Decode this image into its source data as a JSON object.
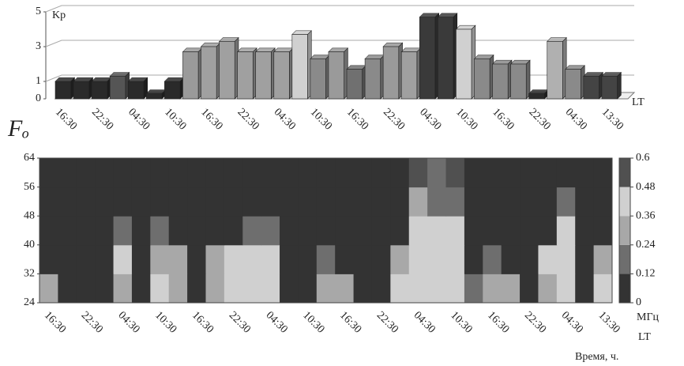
{
  "chart_data": [
    {
      "type": "bar3d",
      "ylabel": "Kp",
      "xlabel": "LT",
      "ylim": [
        0,
        5
      ],
      "yticks": [
        0,
        1,
        3,
        5
      ],
      "grid": true,
      "xtick_labels": [
        "16:30",
        "22:30",
        "04:30",
        "10:30",
        "16:30",
        "22:30",
        "04:30",
        "10:30",
        "16:30",
        "22:30",
        "04:30",
        "10:30",
        "16:30",
        "22:30",
        "04:30",
        "13:30"
      ],
      "values": [
        1,
        1,
        1,
        1.3,
        1,
        0.3,
        1,
        2.7,
        3,
        3.3,
        2.7,
        2.7,
        2.7,
        3.7,
        2.3,
        2.7,
        1.7,
        2.3,
        3,
        2.7,
        4.7,
        4.7,
        4,
        2.3,
        2,
        2,
        0.3,
        3.3,
        1.7,
        1.3,
        1.3
      ],
      "colors": [
        "#2a2a2a",
        "#2a2a2a",
        "#2a2a2a",
        "#555",
        "#2a2a2a",
        "#2a2a2a",
        "#2a2a2a",
        "#9a9a9a",
        "#a0a0a0",
        "#a0a0a0",
        "#a0a0a0",
        "#a0a0a0",
        "#a0a0a0",
        "#d0d0d0",
        "#8a8a8a",
        "#9a9a9a",
        "#707070",
        "#8a8a8a",
        "#9a9a9a",
        "#a0a0a0",
        "#3a3a3a",
        "#3a3a3a",
        "#d0d0d0",
        "#8a8a8a",
        "#8a8a8a",
        "#8a8a8a",
        "#2a2a2a",
        "#b0b0b0",
        "#8a8a8a",
        "#444",
        "#444"
      ]
    },
    {
      "type": "heatmap",
      "ylabel": "Fₒ",
      "xlabel": "LT",
      "caption": "Время, ч.",
      "colorbar_label": "МГц",
      "ylim": [
        24,
        64
      ],
      "yticks": [
        24,
        32,
        40,
        48,
        56,
        64
      ],
      "xtick_labels": [
        "16:30",
        "22:30",
        "04:30",
        "10:30",
        "16:30",
        "22:30",
        "04:30",
        "10:30",
        "16:30",
        "22:30",
        "04:30",
        "10:30",
        "16:30",
        "22:30",
        "04:30",
        "13:30"
      ],
      "clim": [
        0,
        0.6
      ],
      "cticks": [
        0,
        0.12,
        0.24,
        0.36,
        0.48,
        0.6
      ],
      "colorscale": [
        "#333333",
        "#6e6e6e",
        "#a8a8a8",
        "#d0d0d0",
        "#505050"
      ],
      "z": [
        [
          0.24,
          0.06,
          0.06,
          0.06,
          0.3,
          0.06,
          0.36,
          0.24,
          0.06,
          0.3,
          0.42,
          0.42,
          0.42,
          0.06,
          0.06,
          0.3,
          0.24,
          0.06,
          0.06,
          0.36,
          0.42,
          0.45,
          0.42,
          0.12,
          0.3,
          0.24,
          0.06,
          0.3,
          0.42,
          0.06,
          0.36
        ],
        [
          0.06,
          0.06,
          0,
          0.06,
          0.36,
          0.06,
          0.3,
          0.24,
          0.06,
          0.24,
          0.36,
          0.42,
          0.36,
          0.06,
          0.06,
          0.18,
          0.06,
          0.06,
          0.06,
          0.24,
          0.42,
          0.45,
          0.42,
          0.06,
          0.12,
          0.06,
          0.06,
          0.36,
          0.42,
          0.06,
          0.24
        ],
        [
          0,
          0,
          0,
          0,
          0.12,
          0,
          0.12,
          0.06,
          0,
          0.06,
          0.06,
          0.12,
          0.12,
          0,
          0,
          0,
          0,
          0,
          0,
          0.06,
          0.36,
          0.42,
          0.36,
          0,
          0,
          0,
          0,
          0.06,
          0.36,
          0,
          0
        ],
        [
          0,
          0,
          0,
          0,
          0,
          0,
          0,
          0,
          0,
          0,
          0,
          0,
          0,
          0,
          0,
          0,
          0,
          0,
          0,
          0,
          0.3,
          0.12,
          0.18,
          0,
          0,
          0,
          0,
          0,
          0.12,
          0,
          0
        ],
        [
          0,
          0,
          0,
          0,
          0,
          0,
          0,
          0,
          0,
          0,
          0,
          0,
          0,
          0,
          0,
          0,
          0,
          0,
          0,
          0,
          0.6,
          0.12,
          0.6,
          0,
          0,
          0,
          0,
          0,
          0,
          0,
          0
        ]
      ]
    }
  ]
}
